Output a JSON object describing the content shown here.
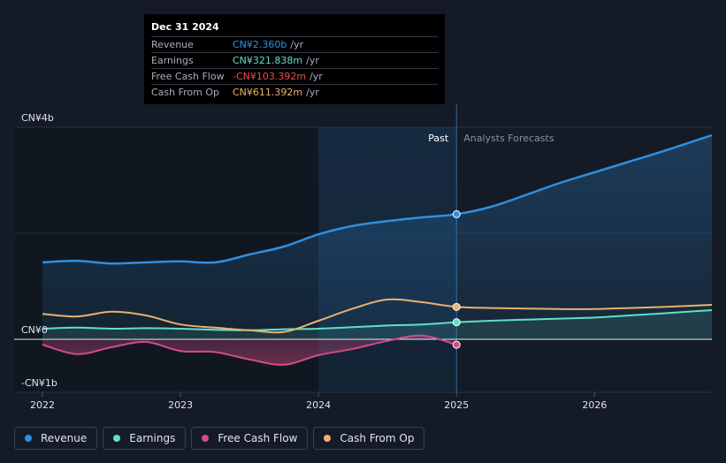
{
  "tooltip": {
    "date": "Dec 31 2024",
    "rows": [
      {
        "label": "Revenue",
        "value": "CN¥2.360b",
        "unit": "/yr"
      },
      {
        "label": "Earnings",
        "value": "CN¥321.838m",
        "unit": "/yr"
      },
      {
        "label": "Free Cash Flow",
        "value": "-CN¥103.392m",
        "unit": "/yr"
      },
      {
        "label": "Cash From Op",
        "value": "CN¥611.392m",
        "unit": "/yr"
      }
    ]
  },
  "colors": {
    "revenue": "#2f8fdf",
    "earnings": "#5fe0c6",
    "fcf": "#d24b87",
    "cfo": "#e8b26a"
  },
  "legend": [
    {
      "label": "Revenue",
      "key": "revenue"
    },
    {
      "label": "Earnings",
      "key": "earnings"
    },
    {
      "label": "Free Cash Flow",
      "key": "fcf"
    },
    {
      "label": "Cash From Op",
      "key": "cfo"
    }
  ],
  "chart_data": {
    "type": "line",
    "title": "",
    "y_tick_labels": [
      "CN¥4b",
      "CN¥0",
      "-CN¥1b"
    ],
    "y_ticks": [
      4,
      0,
      -1
    ],
    "ylim": [
      -1,
      4
    ],
    "xlim": [
      2022,
      2026.85
    ],
    "x_ticks": [
      2022,
      2023,
      2024,
      2025,
      2026
    ],
    "x_tick_labels": [
      "2022",
      "2023",
      "2024",
      "2025",
      "2026"
    ],
    "past_label": "Past",
    "forecast_label": "Analysts Forecasts",
    "divider_x": 2025,
    "highlight_start": 2024,
    "series": [
      {
        "name": "Revenue",
        "key": "revenue",
        "area": true,
        "points": [
          [
            2022.0,
            1.45
          ],
          [
            2022.25,
            1.48
          ],
          [
            2022.5,
            1.43
          ],
          [
            2022.75,
            1.45
          ],
          [
            2023.0,
            1.47
          ],
          [
            2023.25,
            1.45
          ],
          [
            2023.5,
            1.6
          ],
          [
            2023.75,
            1.75
          ],
          [
            2024.0,
            1.98
          ],
          [
            2024.25,
            2.14
          ],
          [
            2024.5,
            2.23
          ],
          [
            2024.75,
            2.3
          ],
          [
            2025.0,
            2.36
          ],
          [
            2025.25,
            2.5
          ],
          [
            2025.5,
            2.72
          ],
          [
            2025.75,
            2.95
          ],
          [
            2026.0,
            3.15
          ],
          [
            2026.25,
            3.35
          ],
          [
            2026.5,
            3.55
          ],
          [
            2026.85,
            3.85
          ]
        ]
      },
      {
        "name": "Earnings",
        "key": "earnings",
        "area": true,
        "points": [
          [
            2022.0,
            0.2
          ],
          [
            2022.25,
            0.22
          ],
          [
            2022.5,
            0.2
          ],
          [
            2022.75,
            0.21
          ],
          [
            2023.0,
            0.2
          ],
          [
            2023.25,
            0.18
          ],
          [
            2023.5,
            0.17
          ],
          [
            2023.75,
            0.19
          ],
          [
            2024.0,
            0.2
          ],
          [
            2024.25,
            0.23
          ],
          [
            2024.5,
            0.26
          ],
          [
            2024.75,
            0.28
          ],
          [
            2025.0,
            0.322
          ],
          [
            2025.25,
            0.35
          ],
          [
            2025.5,
            0.37
          ],
          [
            2025.75,
            0.39
          ],
          [
            2026.0,
            0.41
          ],
          [
            2026.25,
            0.45
          ],
          [
            2026.5,
            0.49
          ],
          [
            2026.85,
            0.55
          ]
        ]
      },
      {
        "name": "Free Cash Flow",
        "key": "fcf",
        "area": true,
        "points": [
          [
            2022.0,
            -0.1
          ],
          [
            2022.25,
            -0.28
          ],
          [
            2022.5,
            -0.15
          ],
          [
            2022.75,
            -0.05
          ],
          [
            2023.0,
            -0.22
          ],
          [
            2023.25,
            -0.24
          ],
          [
            2023.5,
            -0.38
          ],
          [
            2023.75,
            -0.48
          ],
          [
            2024.0,
            -0.3
          ],
          [
            2024.25,
            -0.18
          ],
          [
            2024.5,
            -0.03
          ],
          [
            2024.75,
            0.07
          ],
          [
            2025.0,
            -0.103
          ]
        ]
      },
      {
        "name": "Cash From Op",
        "key": "cfo",
        "area": false,
        "points": [
          [
            2022.0,
            0.48
          ],
          [
            2022.25,
            0.43
          ],
          [
            2022.5,
            0.52
          ],
          [
            2022.75,
            0.45
          ],
          [
            2023.0,
            0.28
          ],
          [
            2023.25,
            0.22
          ],
          [
            2023.5,
            0.17
          ],
          [
            2023.75,
            0.14
          ],
          [
            2024.0,
            0.35
          ],
          [
            2024.25,
            0.58
          ],
          [
            2024.5,
            0.75
          ],
          [
            2024.75,
            0.7
          ],
          [
            2025.0,
            0.611
          ],
          [
            2025.25,
            0.59
          ],
          [
            2025.5,
            0.58
          ],
          [
            2025.75,
            0.57
          ],
          [
            2026.0,
            0.57
          ],
          [
            2026.25,
            0.59
          ],
          [
            2026.5,
            0.61
          ],
          [
            2026.85,
            0.65
          ]
        ]
      }
    ],
    "markers": [
      {
        "key": "revenue",
        "x": 2025,
        "y": 2.36
      },
      {
        "key": "cfo",
        "x": 2025,
        "y": 0.611
      },
      {
        "key": "earnings",
        "x": 2025,
        "y": 0.322
      },
      {
        "key": "fcf",
        "x": 2025,
        "y": -0.103
      }
    ]
  }
}
